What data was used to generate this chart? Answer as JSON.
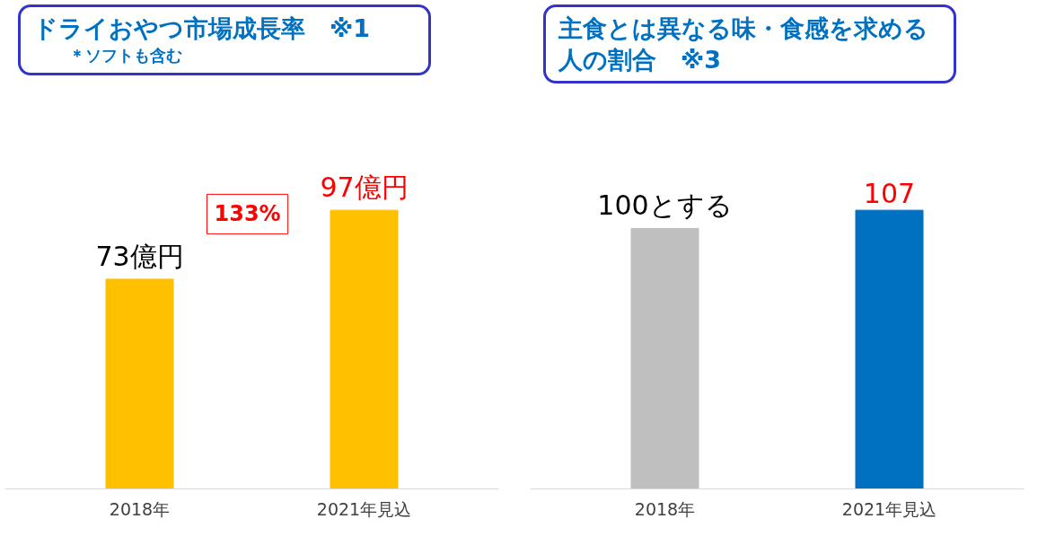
{
  "chart_data": [
    {
      "type": "bar",
      "title": "ドライおやつ市場成長率　※1",
      "subtitle": "＊ソフトも含む",
      "categories": [
        "2018年",
        "2021年見込"
      ],
      "values": [
        73,
        97
      ],
      "color": "#ffc000",
      "value_labels": [
        "73億円",
        "97億円"
      ],
      "annotations": [
        "133%"
      ],
      "grid": false
    },
    {
      "type": "bar",
      "title": "主食とは異なる味・食感を求める人の割合　※3",
      "categories": [
        "2018年",
        "2021年見込"
      ],
      "values": [
        100,
        107
      ],
      "colors": [
        "#bfbfbf",
        "#0070c0"
      ],
      "value_labels": [
        "100とする",
        "107"
      ],
      "grid": false
    }
  ]
}
